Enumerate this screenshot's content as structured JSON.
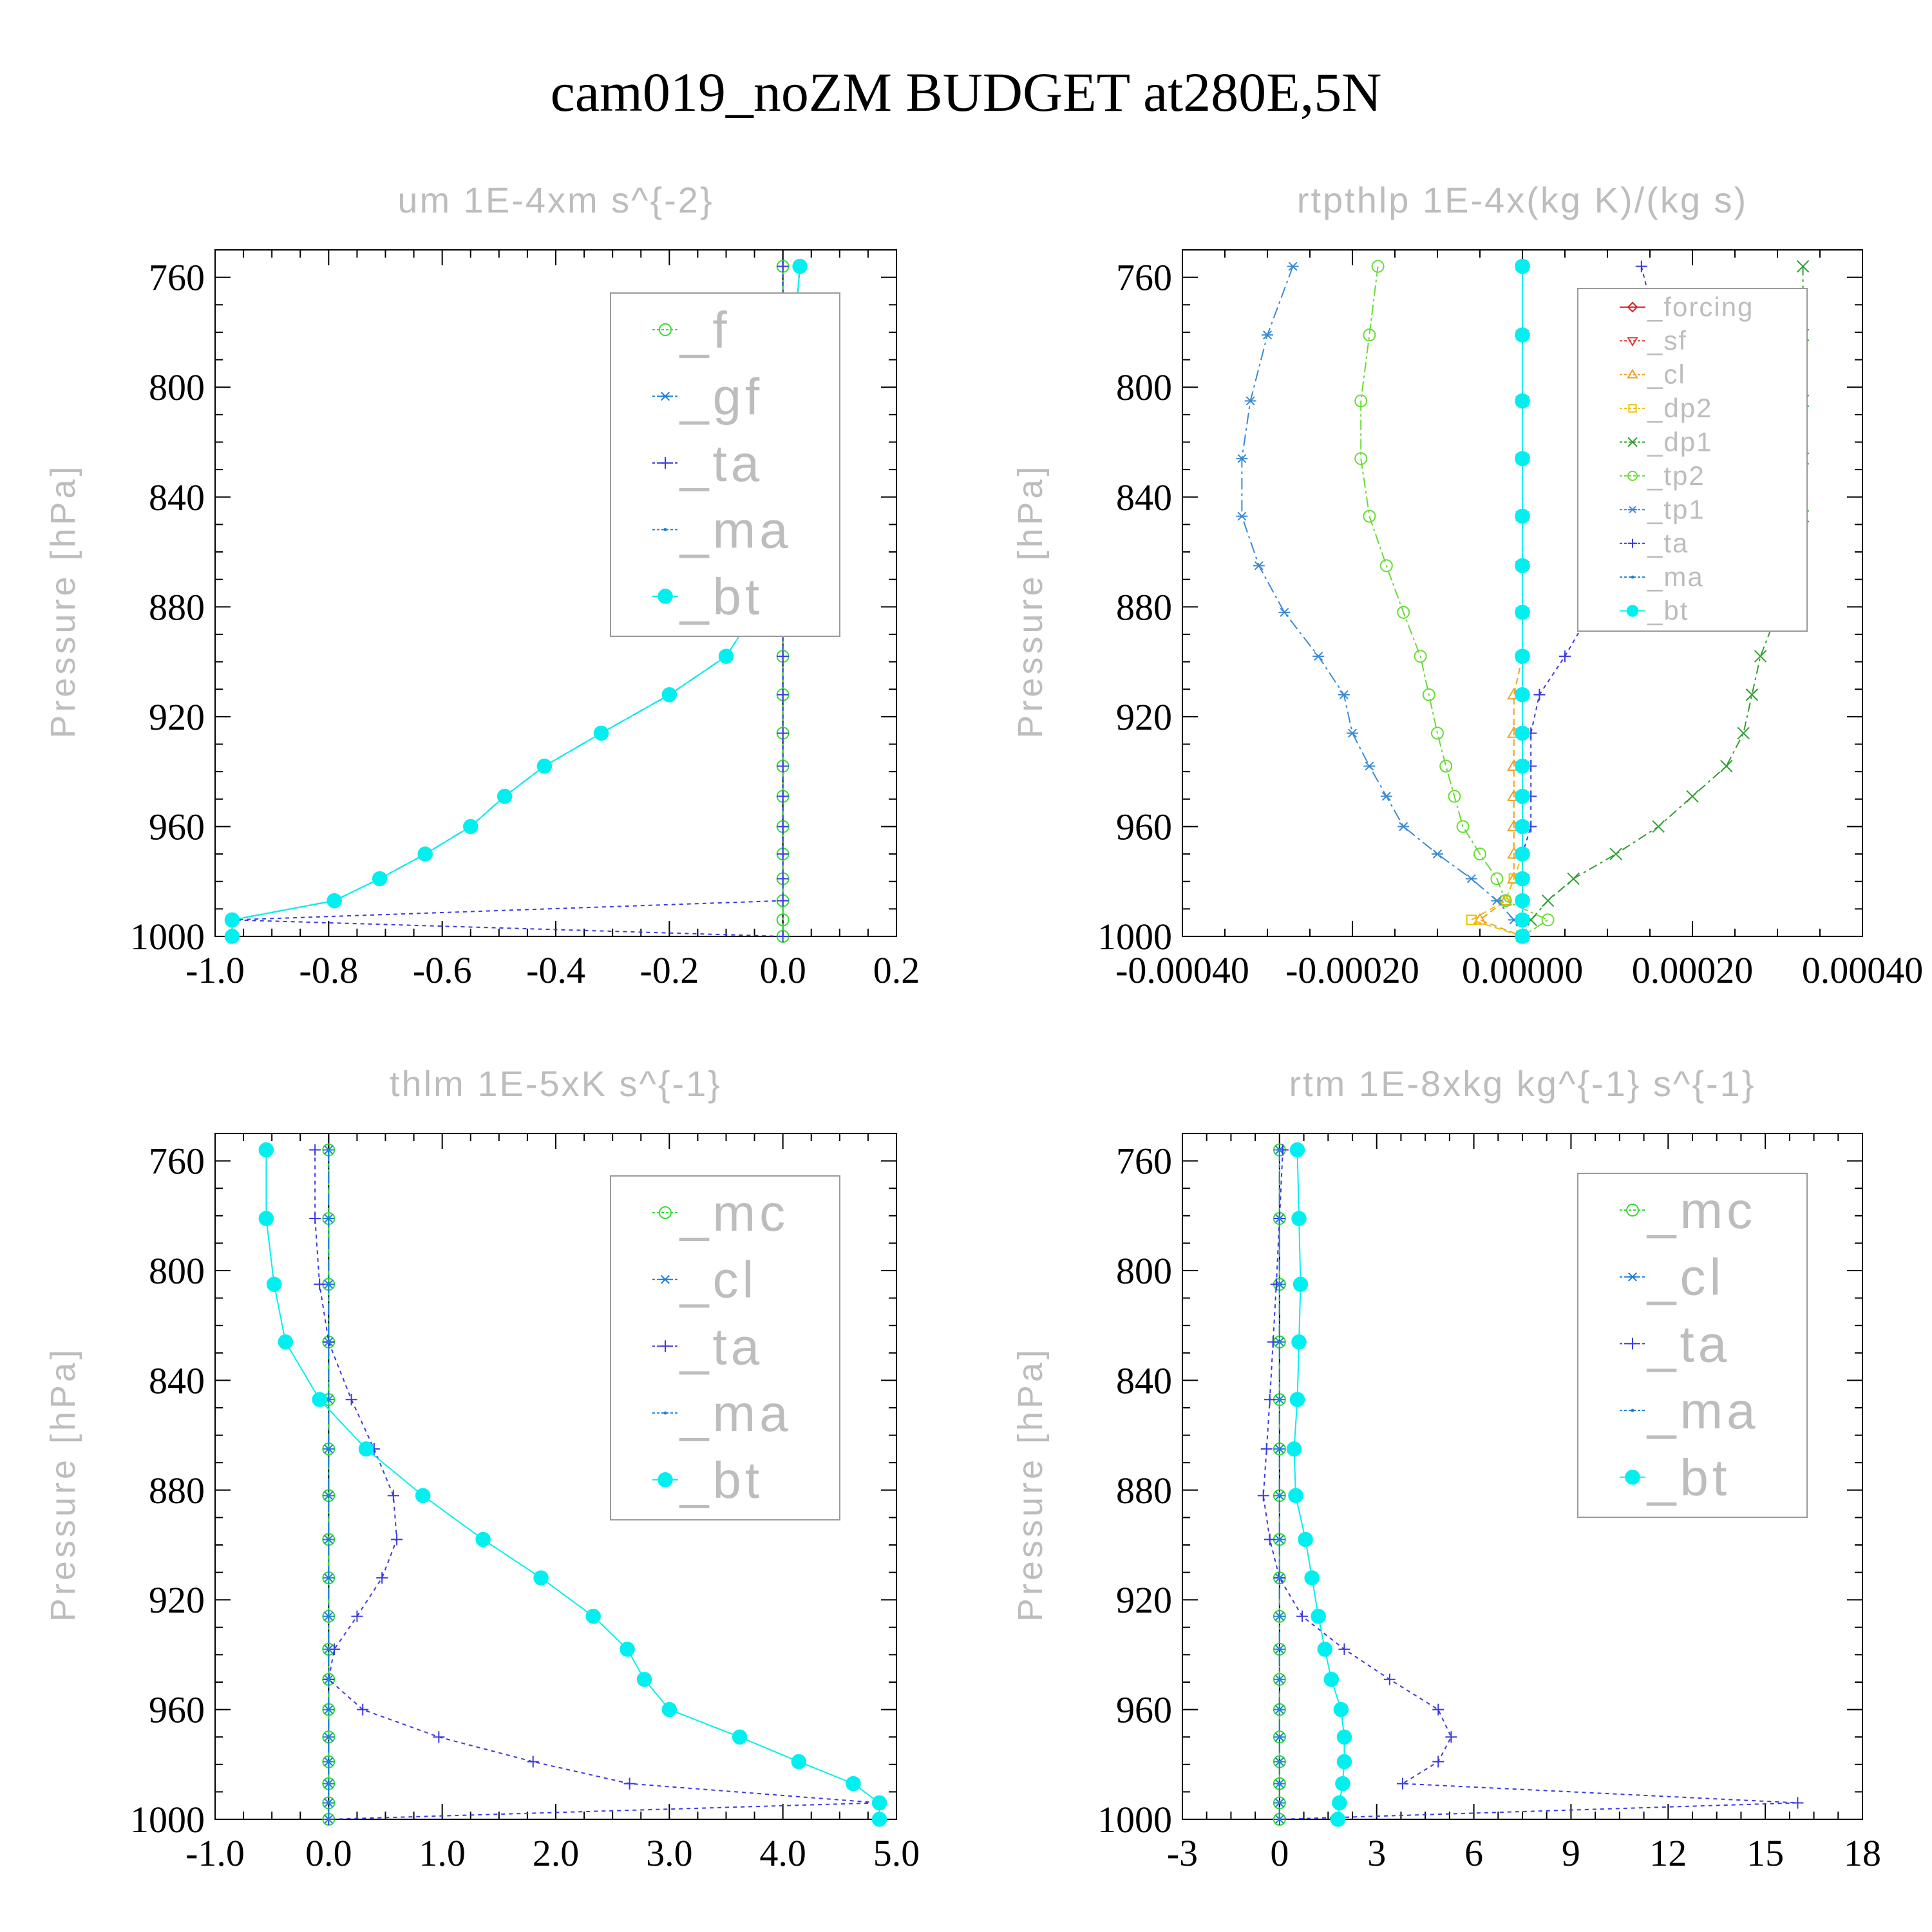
{
  "figure_title": "cam019_noZM  BUDGET at280E,5N",
  "colors": {
    "axis": "#000000",
    "faded_text": "#bdbdbd",
    "legend_box": "#9a9a9a",
    "f": "#33dd33",
    "mc": "#33dd33",
    "gf": "#1e7fd6",
    "cl": "#1e7fd6",
    "ta": "#3a3ae0",
    "ma": "#1a82d9",
    "bt": "#00f0f0",
    "forcing": "#d42020",
    "sf": "#e03a3a",
    "cl_orange": "#f0a020",
    "dp2": "#f0c000",
    "dp1": "#2ea02e",
    "tp2": "#66dd33",
    "tp1": "#3a8ad6"
  },
  "chart_data": [
    {
      "id": "um",
      "type": "line",
      "title": "um   1E-4xm s^{-2}",
      "ylabel": "Pressure [hPa]",
      "xlabel": "",
      "xlim": [
        -1.0,
        0.2
      ],
      "ylim": [
        1000,
        750
      ],
      "xticks": [
        -1.0,
        -0.8,
        -0.6,
        -0.4,
        -0.2,
        0.0,
        0.2
      ],
      "xtick_labels": [
        "-1.0",
        "-0.8",
        "-0.6",
        "-0.4",
        "-0.2",
        "0.0",
        "0.2"
      ],
      "yticks": [
        760,
        800,
        840,
        880,
        920,
        960,
        1000
      ],
      "ytick_labels": [
        "760",
        "800",
        "840",
        "880",
        "920",
        "960",
        "1000"
      ],
      "pressure": [
        756,
        781,
        805,
        826,
        847,
        865,
        882,
        898,
        912,
        926,
        938,
        949,
        960,
        970,
        979,
        987,
        994,
        1000
      ],
      "legend_position": "top-right",
      "series": [
        {
          "name": "_f",
          "key": "f",
          "marker": "circle",
          "values": [
            0,
            0,
            0,
            0,
            0,
            0,
            0,
            0,
            0,
            0,
            0,
            0,
            0,
            0,
            0,
            0,
            0,
            0
          ]
        },
        {
          "name": "_gf",
          "key": "gf",
          "marker": "asterisk",
          "values": [
            0.03,
            0.02,
            0.01,
            0.01,
            0.005,
            -0.01,
            -0.05,
            -0.1,
            -0.2,
            -0.32,
            -0.42,
            -0.49,
            -0.55,
            -0.63,
            -0.71,
            -0.79,
            -0.97,
            -0.97
          ]
        },
        {
          "name": "_ta",
          "key": "ta",
          "marker": "plus",
          "values": [
            0,
            0,
            0,
            0,
            0,
            0,
            0,
            0,
            0,
            0,
            0,
            0,
            0,
            0,
            0,
            0,
            -0.97,
            0
          ]
        },
        {
          "name": "_ma",
          "key": "ma",
          "marker": "dot",
          "values": [
            0.03,
            0.02,
            0.01,
            0.01,
            0.005,
            -0.01,
            -0.05,
            -0.1,
            -0.2,
            -0.32,
            -0.42,
            -0.49,
            -0.55,
            -0.63,
            -0.71,
            -0.79,
            -0.97,
            -0.97
          ]
        },
        {
          "name": "_bt",
          "key": "bt",
          "marker": "filled-circle",
          "values": [
            0.03,
            0.02,
            0.01,
            0.01,
            0.005,
            -0.01,
            -0.05,
            -0.1,
            -0.2,
            -0.32,
            -0.42,
            -0.49,
            -0.55,
            -0.63,
            -0.71,
            -0.79,
            -0.97,
            -0.97
          ]
        }
      ]
    },
    {
      "id": "rtpthlp",
      "type": "line",
      "title": "rtpthlp   1E-4x(kg K)/(kg s)",
      "ylabel": "Pressure [hPa]",
      "xlabel": "",
      "xlim": [
        -0.0004,
        0.0004
      ],
      "ylim": [
        1000,
        750
      ],
      "xticks": [
        -0.0004,
        -0.0002,
        0.0,
        0.0002,
        0.0004
      ],
      "xtick_labels": [
        "-0.00040",
        "-0.00020",
        "0.00000",
        "0.00020",
        "0.00040"
      ],
      "yticks": [
        760,
        800,
        840,
        880,
        920,
        960,
        1000
      ],
      "ytick_labels": [
        "760",
        "800",
        "840",
        "880",
        "920",
        "960",
        "1000"
      ],
      "pressure": [
        756,
        781,
        805,
        826,
        847,
        865,
        882,
        898,
        912,
        926,
        938,
        949,
        960,
        970,
        979,
        987,
        994,
        1000
      ],
      "legend_position": "top-right",
      "series": [
        {
          "name": "_forcing",
          "key": "forcing",
          "marker": "diamond",
          "values": [
            0,
            0,
            0,
            0,
            0,
            0,
            0,
            0,
            0,
            0,
            0,
            0,
            0,
            0,
            0,
            0,
            0,
            0
          ]
        },
        {
          "name": "_sf",
          "key": "sf",
          "marker": "triangle-down",
          "values": [
            0,
            0,
            0,
            0,
            0,
            0,
            0,
            0,
            0,
            0,
            0,
            0,
            0,
            0,
            0,
            0,
            0,
            0
          ]
        },
        {
          "name": "_cl",
          "key": "cl_orange",
          "marker": "triangle-up",
          "values": [
            0,
            0,
            0,
            0,
            0,
            0,
            0,
            0,
            -1e-05,
            -1e-05,
            -1e-05,
            -1e-05,
            -1e-05,
            -1e-05,
            -1e-05,
            -2e-05,
            -5e-05,
            0
          ]
        },
        {
          "name": "_dp2",
          "key": "dp2",
          "marker": "square",
          "values": [
            0,
            0,
            0,
            0,
            0,
            0,
            0,
            0,
            0,
            0,
            0,
            0,
            0,
            0,
            -1e-05,
            -2e-05,
            -6e-05,
            0
          ]
        },
        {
          "name": "_dp1",
          "key": "dp1",
          "marker": "x",
          "values": [
            0.00033,
            0.00033,
            0.00033,
            0.00033,
            0.00033,
            0.00032,
            0.0003,
            0.00028,
            0.00027,
            0.00026,
            0.00024,
            0.0002,
            0.00016,
            0.00011,
            6e-05,
            3e-05,
            1e-05,
            0
          ]
        },
        {
          "name": "_tp2",
          "key": "tp2",
          "marker": "circle",
          "values": [
            -0.00017,
            -0.00018,
            -0.00019,
            -0.00019,
            -0.00018,
            -0.00016,
            -0.00014,
            -0.00012,
            -0.00011,
            -0.0001,
            -9e-05,
            -8e-05,
            -7e-05,
            -5e-05,
            -3e-05,
            -2e-05,
            3e-05,
            0
          ]
        },
        {
          "name": "_tp1",
          "key": "tp1",
          "marker": "asterisk",
          "values": [
            -0.00027,
            -0.0003,
            -0.00032,
            -0.00033,
            -0.00033,
            -0.00031,
            -0.00028,
            -0.00024,
            -0.00021,
            -0.0002,
            -0.00018,
            -0.00016,
            -0.00014,
            -0.0001,
            -6e-05,
            -3e-05,
            -1e-05,
            0
          ]
        },
        {
          "name": "_ta",
          "key": "ta",
          "marker": "plus",
          "values": [
            0.00014,
            0.00016,
            0.00017,
            0.00017,
            0.00015,
            0.00013,
            8e-05,
            5e-05,
            2e-05,
            1e-05,
            1e-05,
            1e-05,
            1e-05,
            0,
            0,
            0,
            0,
            0
          ]
        },
        {
          "name": "_ma",
          "key": "ma",
          "marker": "dot",
          "values": [
            0,
            0,
            0,
            0,
            0,
            0,
            0,
            0,
            0,
            0,
            0,
            0,
            0,
            0,
            0,
            0,
            0,
            0
          ]
        },
        {
          "name": "_bt",
          "key": "bt",
          "marker": "filled-circle",
          "values": [
            0,
            0,
            0,
            0,
            0,
            0,
            0,
            0,
            0,
            0,
            0,
            0,
            0,
            0,
            0,
            0,
            0,
            0
          ]
        }
      ]
    },
    {
      "id": "thlm",
      "type": "line",
      "title": "thlm   1E-5xK s^{-1}",
      "ylabel": "Pressure [hPa]",
      "xlabel": "",
      "xlim": [
        -1.0,
        5.0
      ],
      "ylim": [
        1000,
        750
      ],
      "xticks": [
        -1.0,
        0.0,
        1.0,
        2.0,
        3.0,
        4.0,
        5.0
      ],
      "xtick_labels": [
        "-1.0",
        "0.0",
        "1.0",
        "2.0",
        "3.0",
        "4.0",
        "5.0"
      ],
      "yticks": [
        760,
        800,
        840,
        880,
        920,
        960,
        1000
      ],
      "ytick_labels": [
        "760",
        "800",
        "840",
        "880",
        "920",
        "960",
        "1000"
      ],
      "pressure": [
        756,
        781,
        805,
        826,
        847,
        865,
        882,
        898,
        912,
        926,
        938,
        949,
        960,
        970,
        979,
        987,
        994,
        1000
      ],
      "legend_position": "top-right",
      "series": [
        {
          "name": "_mc",
          "key": "mc",
          "marker": "circle",
          "values": [
            0,
            0,
            0,
            0,
            0,
            0,
            0,
            0,
            0,
            0,
            0,
            0,
            0,
            0,
            0,
            0,
            0,
            0
          ]
        },
        {
          "name": "_cl",
          "key": "cl",
          "marker": "asterisk",
          "values": [
            0,
            0,
            0,
            0,
            0,
            0,
            0,
            0,
            0,
            0,
            0,
            0,
            0,
            0,
            0,
            0,
            0,
            0
          ]
        },
        {
          "name": "_ta",
          "key": "ta",
          "marker": "plus",
          "values": [
            -0.12,
            -0.12,
            -0.08,
            0.0,
            0.2,
            0.4,
            0.57,
            0.6,
            0.47,
            0.25,
            0.05,
            0.0,
            0.3,
            0.97,
            1.8,
            2.65,
            4.84,
            0.0
          ]
        },
        {
          "name": "_ma",
          "key": "ma",
          "marker": "dot",
          "values": [
            0,
            0,
            0,
            0,
            0,
            0,
            0,
            0,
            0,
            0,
            0,
            0,
            0,
            0,
            0,
            0,
            0,
            0
          ]
        },
        {
          "name": "_bt",
          "key": "bt",
          "marker": "filled-circle",
          "values": [
            -0.55,
            -0.55,
            -0.48,
            -0.38,
            -0.08,
            0.33,
            0.83,
            1.36,
            1.87,
            2.33,
            2.63,
            2.78,
            3.0,
            3.62,
            4.14,
            4.62,
            4.85,
            4.85
          ]
        }
      ]
    },
    {
      "id": "rtm",
      "type": "line",
      "title": "rtm   1E-8xkg kg^{-1} s^{-1}",
      "ylabel": "Pressure [hPa]",
      "xlabel": "",
      "xlim": [
        -3,
        18
      ],
      "ylim": [
        1000,
        750
      ],
      "xticks": [
        -3,
        0,
        3,
        6,
        9,
        12,
        15,
        18
      ],
      "xtick_labels": [
        "-3",
        "0",
        "3",
        "6",
        "9",
        "12",
        "15",
        "18"
      ],
      "yticks": [
        760,
        800,
        840,
        880,
        920,
        960,
        1000
      ],
      "ytick_labels": [
        "760",
        "800",
        "840",
        "880",
        "920",
        "960",
        "1000"
      ],
      "pressure": [
        756,
        781,
        805,
        826,
        847,
        865,
        882,
        898,
        912,
        926,
        938,
        949,
        960,
        970,
        979,
        987,
        994,
        1000
      ],
      "legend_position": "top-right",
      "series": [
        {
          "name": "_mc",
          "key": "mc",
          "marker": "circle",
          "values": [
            0,
            0,
            0,
            0,
            0,
            0,
            0,
            0,
            0,
            0,
            0,
            0,
            0,
            0,
            0,
            0,
            0,
            0
          ]
        },
        {
          "name": "_cl",
          "key": "cl",
          "marker": "asterisk",
          "values": [
            0,
            0,
            0,
            0,
            0,
            0,
            0,
            0,
            0,
            0,
            0,
            0,
            0,
            0,
            0,
            0,
            0,
            0
          ]
        },
        {
          "name": "_ta",
          "key": "ta",
          "marker": "plus",
          "values": [
            0.1,
            0.0,
            -0.1,
            -0.2,
            -0.3,
            -0.4,
            -0.5,
            -0.3,
            0.0,
            0.7,
            2.0,
            3.4,
            4.9,
            5.3,
            4.9,
            3.8,
            16.0,
            0.0
          ]
        },
        {
          "name": "_ma",
          "key": "ma",
          "marker": "dot",
          "values": [
            0,
            0,
            0,
            0,
            0,
            0,
            0,
            0,
            0,
            0,
            0,
            0,
            0,
            0,
            0,
            0,
            0,
            0
          ]
        },
        {
          "name": "_bt",
          "key": "bt",
          "marker": "filled-circle",
          "values": [
            0.55,
            0.6,
            0.65,
            0.6,
            0.55,
            0.45,
            0.5,
            0.8,
            1.0,
            1.2,
            1.4,
            1.6,
            1.9,
            2.0,
            2.0,
            1.95,
            1.85,
            1.8
          ]
        }
      ]
    }
  ]
}
